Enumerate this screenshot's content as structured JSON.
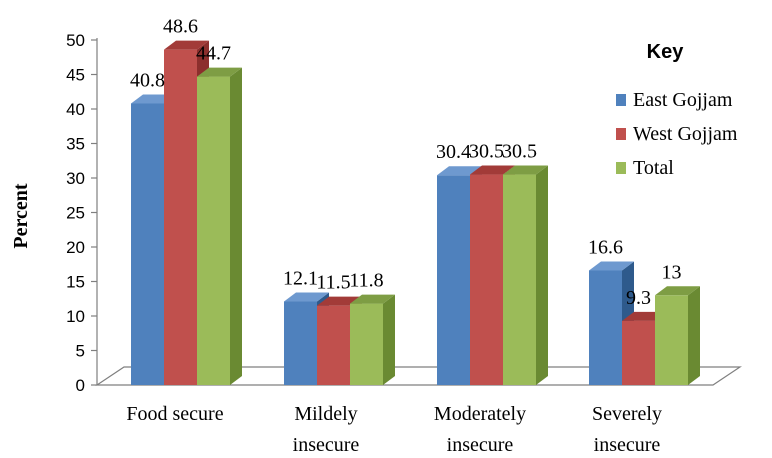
{
  "chart_data": {
    "type": "bar",
    "categories": [
      [
        "Food secure"
      ],
      [
        "Mildely",
        "insecure"
      ],
      [
        "Moderately",
        "insecure"
      ],
      [
        "Severely",
        "insecure"
      ]
    ],
    "series": [
      {
        "name": "East Gojjam",
        "values": [
          40.8,
          12.1,
          30.4,
          16.6
        ],
        "labels": [
          "40.8",
          "12.1",
          "30.4",
          "16.6"
        ],
        "color": "#4F81BD",
        "side_color": "#2E5A8C",
        "top_color": "#6E99CF"
      },
      {
        "name": "West Gojjam",
        "values": [
          48.6,
          11.5,
          30.5,
          9.3
        ],
        "labels": [
          "48.6",
          "11.5",
          "30.5",
          "9.3"
        ],
        "color": "#C0504D",
        "side_color": "#8C2F2D",
        "top_color": "#A23B38"
      },
      {
        "name": "Total",
        "values": [
          44.7,
          11.8,
          30.5,
          13
        ],
        "labels": [
          "44.7",
          "11.8",
          "30.5",
          "13"
        ],
        "color": "#9BBB59",
        "side_color": "#6A8A32",
        "top_color": "#7E9D44"
      }
    ],
    "ylabel": "Percent",
    "ylim": [
      0,
      50
    ],
    "yticks": [
      "0",
      "5",
      "10",
      "15",
      "20",
      "25",
      "30",
      "35",
      "40",
      "45",
      "50"
    ],
    "legend": {
      "title": "Key",
      "position": "right"
    },
    "style": "3d-clustered-column",
    "floor_color": "#ffffff"
  }
}
